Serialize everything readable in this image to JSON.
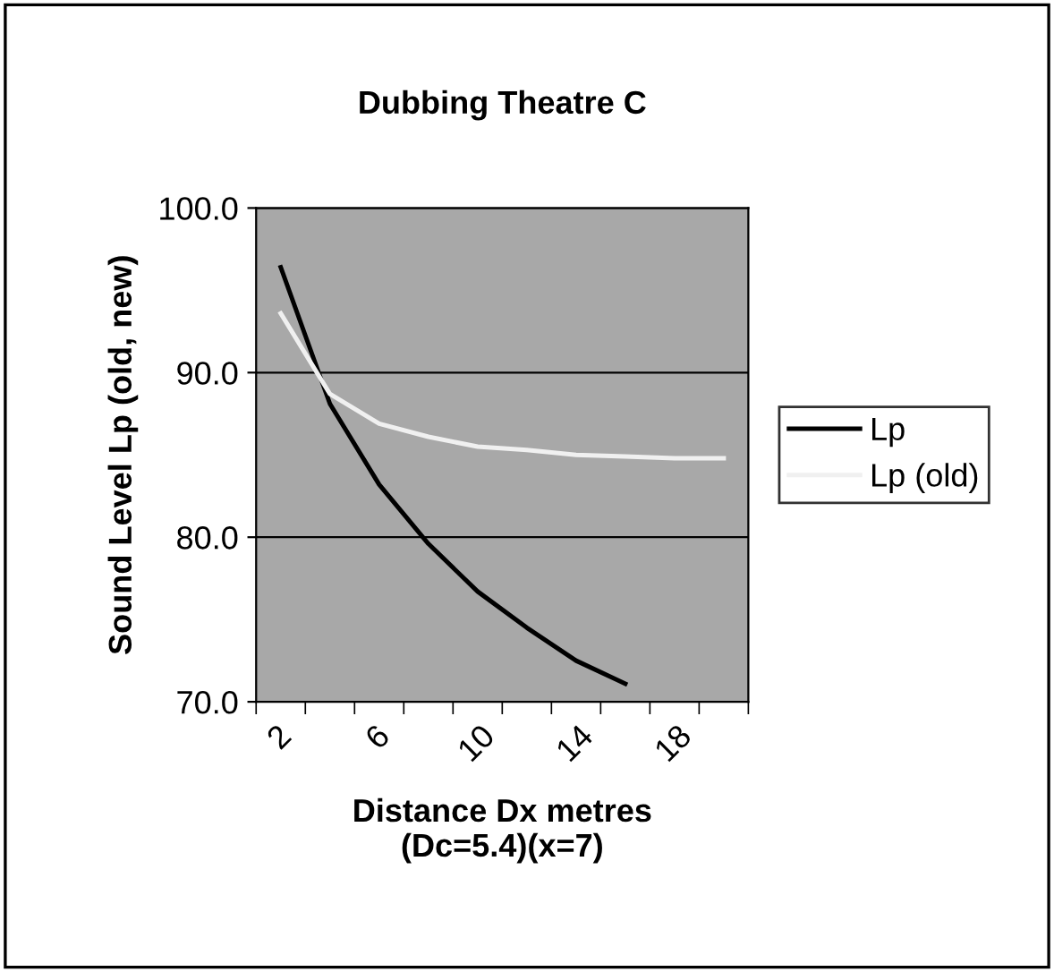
{
  "chart_data": {
    "type": "line",
    "title": "Dubbing Theatre C",
    "xlabel": "Distance Dx metres\n(Dc=5.4)(x=7)",
    "ylabel": "Sound Level Lp (old, new)",
    "categories": [
      "2",
      null,
      "6",
      null,
      "10",
      null,
      "14",
      null,
      "18",
      null
    ],
    "series": [
      {
        "name": "Lp",
        "color": "#000000",
        "values": [
          96.4,
          88.1,
          83.2,
          79.6,
          76.7,
          74.5,
          72.5,
          71.1,
          null,
          null
        ]
      },
      {
        "name": "Lp (old)",
        "color": "#f0f0f0",
        "values": [
          93.6,
          88.7,
          86.9,
          86.1,
          85.5,
          85.3,
          85.0,
          84.9,
          84.8,
          84.8
        ]
      }
    ],
    "ylim": [
      70,
      100
    ],
    "yticks": [
      {
        "value": 70,
        "label": "70.0"
      },
      {
        "value": 80,
        "label": "80.0"
      },
      {
        "value": 90,
        "label": "90.0"
      },
      {
        "value": 100,
        "label": "100.0"
      }
    ],
    "grid": "y",
    "legend": "right",
    "marker": "none",
    "line_style": "solid"
  }
}
